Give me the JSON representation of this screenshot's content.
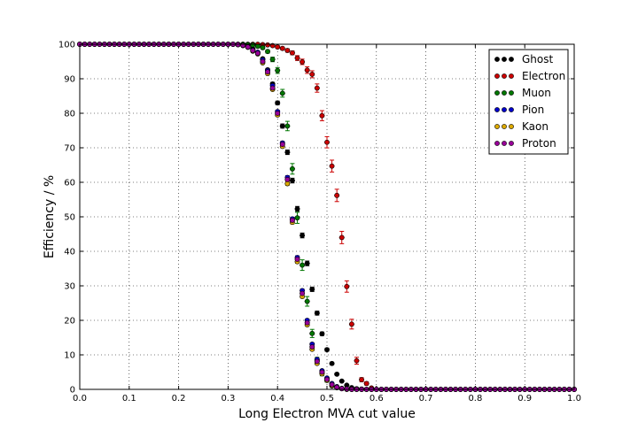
{
  "chart_data": {
    "type": "scatter",
    "title": "",
    "xlabel": "Long Electron MVA cut value",
    "ylabel": "Efficiency / %",
    "xlim": [
      0.0,
      1.0
    ],
    "ylim": [
      0,
      100
    ],
    "xticks": [
      "0.0",
      "0.1",
      "0.2",
      "0.3",
      "0.4",
      "0.5",
      "0.6",
      "0.7",
      "0.8",
      "0.9",
      "1.0"
    ],
    "yticks": [
      "0",
      "10",
      "20",
      "30",
      "40",
      "50",
      "60",
      "70",
      "80",
      "90",
      "100"
    ],
    "grid": true,
    "legend_position": "top-right",
    "x": [
      0.3,
      0.31,
      0.32,
      0.33,
      0.34,
      0.35,
      0.36,
      0.37,
      0.38,
      0.39,
      0.4,
      0.41,
      0.42,
      0.43,
      0.44,
      0.45,
      0.46,
      0.47,
      0.48,
      0.49,
      0.5,
      0.51,
      0.52,
      0.53,
      0.54,
      0.55,
      0.56,
      0.57,
      0.58,
      0.59,
      0.6
    ],
    "series": [
      {
        "name": "Ghost",
        "color": "#000000",
        "err": 0.7,
        "values": [
          100,
          100,
          99.9,
          99.7,
          99.3,
          98.7,
          97.6,
          95.8,
          92.6,
          88.5,
          83.0,
          76.3,
          68.7,
          60.5,
          52.3,
          44.6,
          36.5,
          29.0,
          22.1,
          16.1,
          11.5,
          7.5,
          4.4,
          2.4,
          1.2,
          0.5,
          0.2,
          0.1,
          0,
          0,
          0
        ]
      },
      {
        "name": "Electron",
        "color": "#cc0000",
        "err": 1.8,
        "values": [
          100,
          100,
          100,
          100,
          100,
          100,
          100,
          99.9,
          99.8,
          99.6,
          99.2,
          98.8,
          98.2,
          97.5,
          96.0,
          94.9,
          92.5,
          91.3,
          87.3,
          79.3,
          71.6,
          64.7,
          56.2,
          44.0,
          29.8,
          18.9,
          8.3,
          2.8,
          1.7,
          0.4,
          0
        ]
      },
      {
        "name": "Muon",
        "color": "#007700",
        "err": 1.6,
        "values": [
          100,
          100,
          100,
          100,
          99.9,
          99.8,
          99.4,
          99.0,
          97.9,
          95.6,
          92.4,
          85.8,
          76.3,
          63.9,
          49.7,
          36.0,
          25.5,
          16.2,
          8.4,
          4.6,
          2.6,
          1.0,
          0.5,
          0.2,
          0,
          0,
          0,
          0,
          0,
          0,
          0
        ]
      },
      {
        "name": "Pion",
        "color": "#0000cc",
        "err": 0.5,
        "values": [
          100,
          100,
          99.9,
          99.7,
          99.3,
          98.4,
          97.7,
          95.5,
          92.4,
          88.0,
          80.5,
          71.4,
          61.4,
          49.4,
          38.2,
          28.6,
          20.0,
          13.1,
          8.7,
          5.4,
          3.3,
          1.7,
          0.8,
          0.3,
          0.1,
          0,
          0,
          0,
          0,
          0,
          0
        ]
      },
      {
        "name": "Kaon",
        "color": "#ddaa00",
        "err": 0.5,
        "values": [
          100,
          100,
          99.9,
          99.6,
          99.1,
          98.0,
          97.2,
          94.6,
          91.5,
          86.9,
          79.5,
          70.4,
          59.6,
          48.4,
          37.0,
          26.9,
          18.7,
          11.6,
          7.5,
          4.5,
          2.6,
          1.1,
          0.5,
          0.2,
          0,
          0,
          0,
          0,
          0,
          0,
          0
        ]
      },
      {
        "name": "Proton",
        "color": "#990099",
        "err": 0.5,
        "values": [
          100,
          100,
          99.9,
          99.7,
          99.2,
          98.2,
          97.4,
          95.0,
          92.0,
          87.3,
          80.0,
          71.0,
          60.8,
          49.0,
          37.7,
          27.8,
          19.3,
          12.3,
          8.1,
          5.0,
          2.9,
          1.4,
          0.6,
          0.2,
          0.1,
          0,
          0,
          0,
          0,
          0,
          0
        ]
      }
    ]
  }
}
